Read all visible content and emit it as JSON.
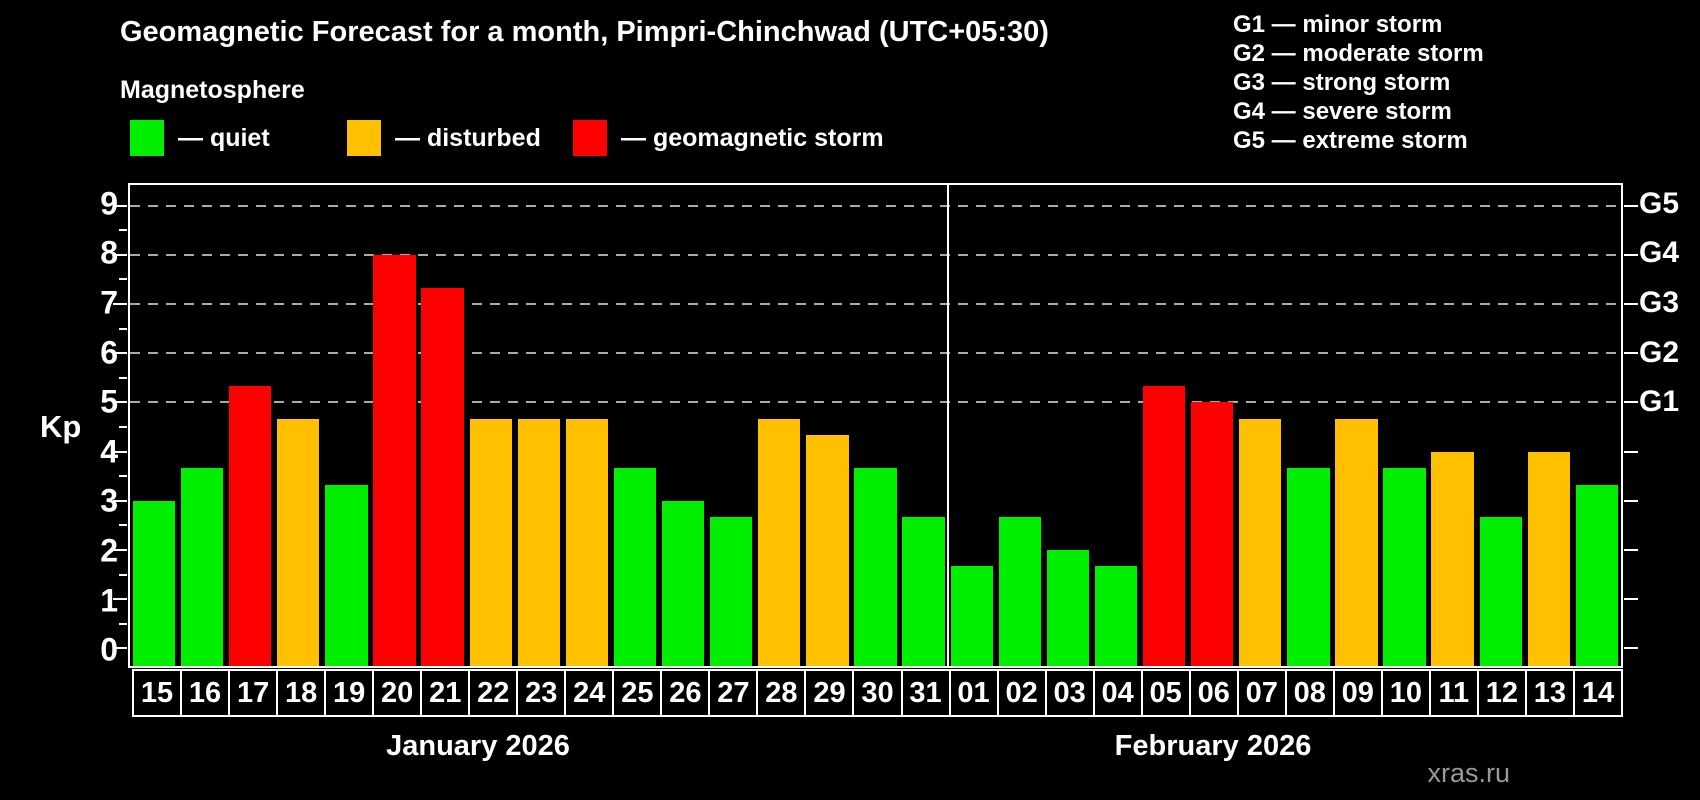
{
  "header": {
    "title": "Geomagnetic Forecast for a month, Pimpri-Chinchwad (UTC+05:30)",
    "subtitle": "Magnetosphere"
  },
  "legend": {
    "items": [
      {
        "key": "quiet",
        "label": "— quiet",
        "color": "#00ee00"
      },
      {
        "key": "disturbed",
        "label": "— disturbed",
        "color": "#ffc000"
      },
      {
        "key": "storm",
        "label": "— geomagnetic storm",
        "color": "#ff0000"
      }
    ]
  },
  "g_legend": [
    "G1 — minor storm",
    "G2 — moderate storm",
    "G3 — strong storm",
    "G4 — severe storm",
    "G5 — extreme storm"
  ],
  "watermark": "xras.ru",
  "chart_data": {
    "type": "bar",
    "ylabel": "Kp",
    "ylim": [
      0,
      9
    ],
    "yticks": [
      0,
      1,
      2,
      3,
      4,
      5,
      6,
      7,
      8,
      9
    ],
    "gridlines_at": [
      5,
      6,
      7,
      8,
      9
    ],
    "grid_style": "dashed-gray-horizontal",
    "legend_position": "top",
    "right_axis_labels": [
      {
        "kp": 9,
        "label": "G5"
      },
      {
        "kp": 8,
        "label": "G4"
      },
      {
        "kp": 7,
        "label": "G3"
      },
      {
        "kp": 6,
        "label": "G2"
      },
      {
        "kp": 5,
        "label": "G1"
      }
    ],
    "months": [
      {
        "label": "January 2026",
        "days": [
          {
            "day": "15",
            "kp": 3.0,
            "status": "quiet"
          },
          {
            "day": "16",
            "kp": 3.67,
            "status": "quiet"
          },
          {
            "day": "17",
            "kp": 5.33,
            "status": "storm"
          },
          {
            "day": "18",
            "kp": 4.67,
            "status": "disturbed"
          },
          {
            "day": "19",
            "kp": 3.33,
            "status": "quiet"
          },
          {
            "day": "20",
            "kp": 8.0,
            "status": "storm"
          },
          {
            "day": "21",
            "kp": 7.33,
            "status": "storm"
          },
          {
            "day": "22",
            "kp": 4.67,
            "status": "disturbed"
          },
          {
            "day": "23",
            "kp": 4.67,
            "status": "disturbed"
          },
          {
            "day": "24",
            "kp": 4.67,
            "status": "disturbed"
          },
          {
            "day": "25",
            "kp": 3.67,
            "status": "quiet"
          },
          {
            "day": "26",
            "kp": 3.0,
            "status": "quiet"
          },
          {
            "day": "27",
            "kp": 2.67,
            "status": "quiet"
          },
          {
            "day": "28",
            "kp": 4.67,
            "status": "disturbed"
          },
          {
            "day": "29",
            "kp": 4.33,
            "status": "disturbed"
          },
          {
            "day": "30",
            "kp": 3.67,
            "status": "quiet"
          },
          {
            "day": "31",
            "kp": 2.67,
            "status": "quiet"
          }
        ]
      },
      {
        "label": "February 2026",
        "days": [
          {
            "day": "01",
            "kp": 1.67,
            "status": "quiet"
          },
          {
            "day": "02",
            "kp": 2.67,
            "status": "quiet"
          },
          {
            "day": "03",
            "kp": 2.0,
            "status": "quiet"
          },
          {
            "day": "04",
            "kp": 1.67,
            "status": "quiet"
          },
          {
            "day": "05",
            "kp": 5.33,
            "status": "storm"
          },
          {
            "day": "06",
            "kp": 5.0,
            "status": "storm"
          },
          {
            "day": "07",
            "kp": 4.67,
            "status": "disturbed"
          },
          {
            "day": "08",
            "kp": 3.67,
            "status": "quiet"
          },
          {
            "day": "09",
            "kp": 4.67,
            "status": "disturbed"
          },
          {
            "day": "10",
            "kp": 3.67,
            "status": "quiet"
          },
          {
            "day": "11",
            "kp": 4.0,
            "status": "disturbed"
          },
          {
            "day": "12",
            "kp": 2.67,
            "status": "quiet"
          },
          {
            "day": "13",
            "kp": 4.0,
            "status": "disturbed"
          },
          {
            "day": "14",
            "kp": 3.33,
            "status": "quiet"
          }
        ]
      }
    ]
  }
}
